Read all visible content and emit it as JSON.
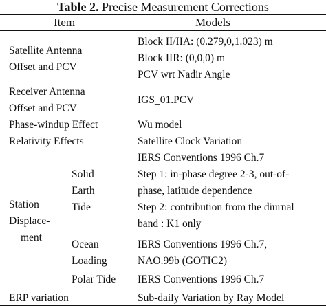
{
  "caption": {
    "label": "Table 2.",
    "title": "Precise Measurement Corrections"
  },
  "header": {
    "item": "Item",
    "models": "Models"
  },
  "rows": {
    "satellite_antenna": {
      "item": [
        "Satellite Antenna",
        "Offset and PCV"
      ],
      "models": [
        "Block II/IIA: (0.279,0,1.023) m",
        "Block IIR: (0,0,0) m",
        "PCV wrt Nadir Angle"
      ]
    },
    "receiver_antenna": {
      "item": [
        "Receiver Antenna",
        "Offset and PCV"
      ],
      "models": [
        "IGS_01.PCV"
      ]
    },
    "phase_windup": {
      "item": "Phase-windup Effect",
      "models": "Wu model"
    },
    "relativity": {
      "item": "Relativity Effects",
      "models": [
        "Satellite Clock Variation",
        "IERS Conventions 1996 Ch.7"
      ]
    },
    "station_displacement": {
      "item": [
        "Station",
        "Displace-",
        "ment"
      ],
      "solid_earth_tide": {
        "label": [
          "Solid",
          "Earth",
          "Tide"
        ],
        "models": [
          "Step 1: in-phase degree 2-3, out-of-",
          "phase, latitude dependence",
          "Step 2: contribution from the diurnal",
          "band : K1 only"
        ]
      },
      "ocean_loading": {
        "label": [
          "Ocean",
          "Loading"
        ],
        "models": [
          "IERS Conventions 1996 Ch.7,",
          "NAO.99b (GOTIC2)"
        ]
      },
      "polar_tide": {
        "label": "Polar Tide",
        "models": "IERS Conventions 1996 Ch.7"
      }
    },
    "erp": {
      "item": "ERP variation",
      "models": "Sub-daily Variation by Ray Model"
    }
  }
}
